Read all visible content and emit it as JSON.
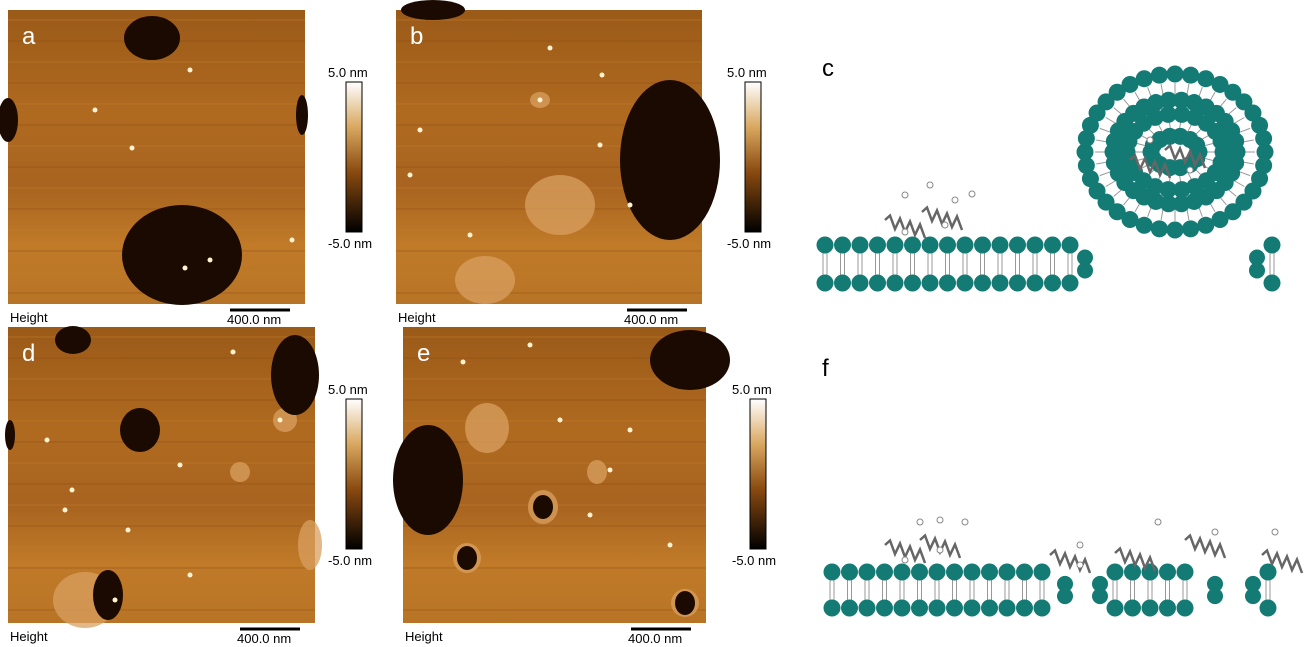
{
  "panels": [
    {
      "label": "a",
      "channel": "Height",
      "scale_bar": "400.0 nm",
      "colorbar": {
        "max": "5.0 nm",
        "min": "-5.0 nm"
      }
    },
    {
      "label": "b",
      "channel": "Height",
      "scale_bar": "400.0 nm",
      "colorbar": {
        "max": "5.0 nm",
        "min": "-5.0 nm"
      }
    },
    {
      "label": "d",
      "channel": "Height",
      "scale_bar": "400.0 nm",
      "colorbar": {
        "max": "5.0 nm",
        "min": "-5.0 nm"
      }
    },
    {
      "label": "e",
      "channel": "Height",
      "scale_bar": "400.0 nm",
      "colorbar": {
        "max": "5.0 nm",
        "min": "-5.0 nm"
      }
    }
  ],
  "diagrams": [
    {
      "label": "c"
    },
    {
      "label": "f"
    }
  ]
}
